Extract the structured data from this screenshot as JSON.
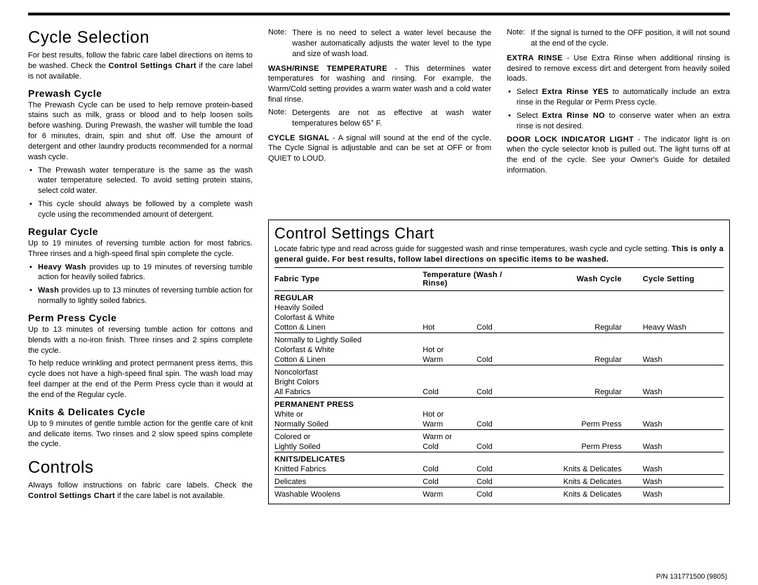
{
  "left": {
    "h1a": "Cycle  Selection",
    "intro_a": "For best results, follow the fabric care label directions on items to be washed. Check the ",
    "intro_bold": "Control Settings Chart",
    "intro_b": " if the care label is not available.",
    "prewash_h": "Prewash  Cycle",
    "prewash_p": "The Prewash Cycle can be used to help remove protein-based stains such as milk, grass or blood and to help loosen soils before washing. During Prewash, the washer will tumble the load for 6 minutes, drain, spin and shut off. Use the amount of detergent and other laundry products recommended for a normal wash cycle.",
    "prewash_li1": "The Prewash water temperature is the same as the wash water temperature selected. To avoid setting protein stains, select cold water.",
    "prewash_li2": "This cycle should always be followed by a complete wash cycle using the recommended amount of detergent.",
    "regular_h": "Regular  Cycle",
    "regular_p": "Up to 19 minutes of reversing tumble action for most fabrics. Three rinses and a high-speed final spin complete the cycle.",
    "regular_li1_bold": "Heavy Wash",
    "regular_li1": " provides up to 19 minutes of reversing tumble action for heavily soiled fabrics.",
    "regular_li2_bold": "Wash",
    "regular_li2": " provides up to 13 minutes of reversing tumble action for normally to lightly soiled fabrics.",
    "perm_h": "Perm  Press  Cycle",
    "perm_p1": "Up to 13 minutes of reversing tumble action for cottons and blends with a no-iron finish. Three rinses and 2 spins complete the cycle.",
    "perm_p2": "To help reduce wrinkling and protect permanent press items, this cycle does not have a high-speed final spin. The wash load may feel damper at the end of the Perm Press cycle than it would at the end of the Regular cycle.",
    "knits_h": "Knits  &  Delicates  Cycle",
    "knits_p": "Up to 9 minutes of gentle tumble action for the gentle care of knit and delicate items. Two rinses and 2 slow speed spins complete the cycle.",
    "h1b": "Controls",
    "controls_a": "Always follow instructions on fabric care labels. Check the ",
    "controls_bold": "Control Settings Chart",
    "controls_b": " if the care label is not available."
  },
  "mid": {
    "note1_label": "Note:",
    "note1": "There is no need to select a water level because the washer automatically adjusts the water level to the type and size of wash load.",
    "wrt_bold": "WASH/RINSE TEMPERATURE",
    "wrt": "  - This determines water temperatures for washing and rinsing. For example, the Warm/Cold setting provides a warm water wash and a cold water final rinse.",
    "note2_label": "Note:",
    "note2": "Detergents are not as effective at wash water temperatures below 65° F.",
    "cs_bold": "CYCLE SIGNAL",
    "cs": " -  A signal will sound at the end of the cycle. The Cycle Signal is adjustable and can be set at OFF or from QUIET to LOUD."
  },
  "right": {
    "note_label": "Note:",
    "note": "If the signal is turned to the OFF position, it will not sound at the end of the cycle.",
    "er_bold": "EXTRA RINSE",
    "er": " - Use Extra Rinse when additional rinsing is desired to remove excess dirt and detergent from heavily soiled loads.",
    "er_li1a": "Select ",
    "er_li1_bold": "Extra Rinse YES",
    "er_li1b": " to automatically include an extra rinse in the Regular or Perm Press cycle.",
    "er_li2a": "Select ",
    "er_li2_bold": "Extra Rinse NO",
    "er_li2b": " to conserve water when an extra rinse is not desired.",
    "dl_bold": "DOOR LOCK INDICATOR LIGHT",
    "dl": " - The indicator light is on when the cycle selector knob is pulled out. The light turns off at the end of the cycle. See your Owner's Guide for detailed information."
  },
  "chart": {
    "title": "Control  Settings  Chart",
    "intro_a": "Locate fabric type and read across guide for suggested wash and rinse temperatures, wash cycle and cycle setting. ",
    "intro_bold": "This is only a general guide. For best results, follow label directions on specific items to be washed.",
    "col1": "Fabric  Type",
    "col2": "Temperature  (Wash  /  Rinse)",
    "col3": "Wash  Cycle",
    "col4": "Cycle  Setting",
    "sections": [
      {
        "hdr": "REGULAR",
        "rows": [
          {
            "fabric": [
              "Heavily Soiled",
              "Colorfast & White",
              "Cotton & Linen"
            ],
            "wash": "Hot",
            "rinse": "Cold",
            "cycle": "Regular",
            "setting": "Heavy Wash"
          },
          {
            "fabric": [
              "Normally to Lightly Soiled",
              "Colorfast & White",
              "Cotton & Linen"
            ],
            "wash": "Hot or Warm",
            "rinse": "Cold",
            "cycle": "Regular",
            "setting": "Wash"
          },
          {
            "fabric": [
              "Noncolorfast",
              "Bright Colors",
              "All Fabrics"
            ],
            "wash": "Cold",
            "rinse": "Cold",
            "cycle": "Regular",
            "setting": "Wash"
          }
        ]
      },
      {
        "hdr": "PERMANENT   PRESS",
        "rows": [
          {
            "fabric": [
              "White or",
              "Normally Soiled"
            ],
            "wash": "Hot or Warm",
            "rinse": "Cold",
            "cycle": "Perm Press",
            "setting": "Wash"
          },
          {
            "fabric": [
              "Colored or",
              "Lightly Soiled"
            ],
            "wash": "Warm or Cold",
            "rinse": "Cold",
            "cycle": "Perm Press",
            "setting": "Wash"
          }
        ]
      },
      {
        "hdr": "KNITS/DELICATES",
        "rows": [
          {
            "fabric": [
              "Knitted Fabrics"
            ],
            "wash": "Cold",
            "rinse": "Cold",
            "cycle": "Knits & Delicates",
            "setting": "Wash"
          },
          {
            "fabric": [
              "Delicates"
            ],
            "wash": "Cold",
            "rinse": "Cold",
            "cycle": "Knits & Delicates",
            "setting": "Wash"
          },
          {
            "fabric": [
              "Washable Woolens"
            ],
            "wash": "Warm",
            "rinse": "Cold",
            "cycle": "Knits & Delicates",
            "setting": "Wash"
          }
        ]
      }
    ]
  },
  "footer": {
    "pn": "P/N 131771500      (9805)"
  }
}
